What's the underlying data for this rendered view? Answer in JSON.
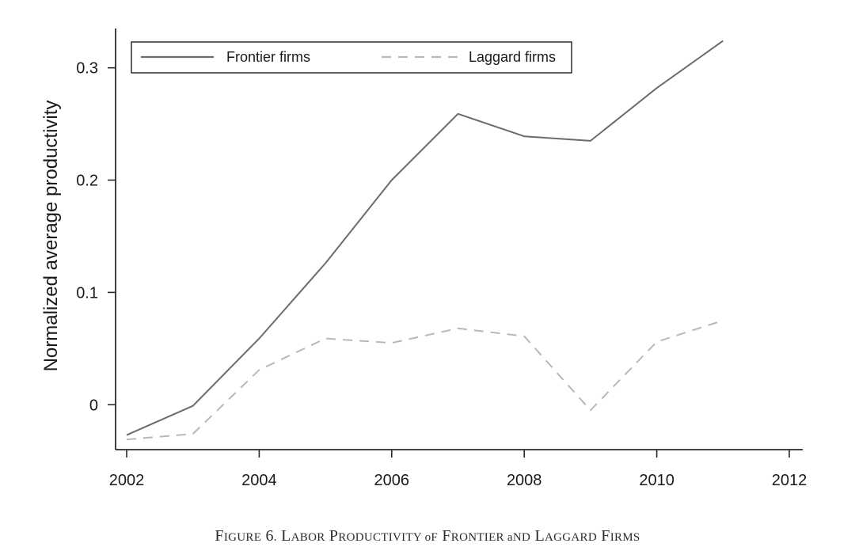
{
  "chart_data": {
    "type": "line",
    "title": "",
    "xlabel": "",
    "ylabel": "Normalized average productivity",
    "xlim": [
      2002,
      2012
    ],
    "ylim": [
      -0.04,
      0.335
    ],
    "x_ticks": [
      2002,
      2004,
      2006,
      2008,
      2010,
      2012
    ],
    "y_ticks": [
      0,
      0.1,
      0.2,
      0.3
    ],
    "y_tick_labels": [
      "0",
      "0.1",
      "0.2",
      "0.3"
    ],
    "grid": false,
    "legend_position": "top",
    "x": [
      2002,
      2003,
      2004,
      2005,
      2006,
      2007,
      2008,
      2009,
      2010,
      2011
    ],
    "series": [
      {
        "name": "Frontier firms",
        "style": "solid",
        "color": "#6b6b6b",
        "values": [
          -0.027,
          -0.001,
          0.059,
          0.126,
          0.2,
          0.259,
          0.239,
          0.235,
          0.282,
          0.324
        ]
      },
      {
        "name": "Laggard firms",
        "style": "dashed",
        "color": "#b8b8b8",
        "values": [
          -0.031,
          -0.026,
          0.031,
          0.059,
          0.055,
          0.068,
          0.061,
          -0.005,
          0.056,
          0.075
        ]
      }
    ]
  },
  "caption": {
    "text": "Figure 6. Labor Productivity of Frontier and Laggard Firms"
  },
  "colors": {
    "axis": "#2a2a2a",
    "frontier": "#6b6b6b",
    "laggard": "#b8b8b8"
  }
}
